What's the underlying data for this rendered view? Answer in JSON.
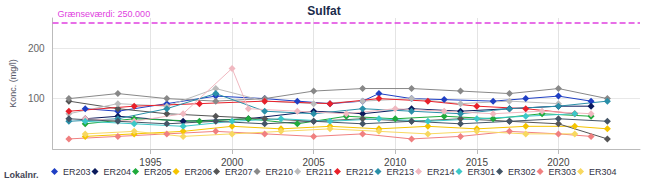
{
  "chart_data": {
    "type": "line",
    "title": "Sulfat",
    "y_label": "Konc. (mg/l)",
    "xlim": [
      1989,
      2025
    ],
    "xticks": [
      1995,
      2000,
      2005,
      2010,
      2015,
      2020
    ],
    "ylim": [
      0,
      260
    ],
    "yticks": [
      100,
      200
    ],
    "grid": true,
    "legend": "bottom",
    "legend_title": "Lokalnr.",
    "marker": "diamond",
    "annotations": [
      {
        "text": "Grænseværdi: 250.000",
        "y": 250,
        "color": "#e040e0",
        "line_style": "dashed"
      }
    ],
    "series": [
      {
        "name": "ER203",
        "color": "#1f3fc4",
        "x": [
          1991,
          1993,
          1996,
          1999,
          2002,
          2004,
          2006,
          2008,
          2009,
          2011,
          2013,
          2016,
          2018,
          2020,
          2022
        ],
        "values": [
          80,
          75,
          90,
          105,
          100,
          95,
          90,
          95,
          110,
          100,
          98,
          95,
          100,
          105,
          95
        ]
      },
      {
        "name": "ER204",
        "color": "#0a1a5c",
        "x": [
          1991,
          1993,
          1997,
          2001,
          2005,
          2008,
          2011,
          2014,
          2017,
          2020,
          2022
        ],
        "values": [
          60,
          65,
          55,
          60,
          75,
          70,
          80,
          75,
          80,
          85,
          85
        ]
      },
      {
        "name": "ER205",
        "color": "#1faa3c",
        "x": [
          1991,
          1994,
          1998,
          2001,
          2004,
          2007,
          2010,
          2013,
          2016,
          2019,
          2022
        ],
        "values": [
          50,
          60,
          55,
          60,
          50,
          65,
          60,
          65,
          60,
          70,
          65
        ]
      },
      {
        "name": "ER206",
        "color": "#f5c400",
        "x": [
          1991,
          1994,
          1997,
          2000,
          2003,
          2006,
          2009,
          2012,
          2015,
          2018,
          2021,
          2023
        ],
        "values": [
          25,
          30,
          35,
          45,
          40,
          45,
          40,
          45,
          40,
          45,
          45,
          40
        ]
      },
      {
        "name": "ER207",
        "color": "#555555",
        "x": [
          1990,
          1993,
          1996,
          1999,
          2002,
          2005,
          2008,
          2011,
          2014,
          2017,
          2020,
          2023
        ],
        "values": [
          95,
          80,
          70,
          65,
          60,
          55,
          60,
          55,
          60,
          55,
          50,
          20
        ]
      },
      {
        "name": "ER210",
        "color": "#888888",
        "x": [
          1990,
          1993,
          1996,
          1999,
          2002,
          2005,
          2008,
          2011,
          2014,
          2017,
          2020,
          2023
        ],
        "values": [
          100,
          110,
          100,
          95,
          100,
          115,
          120,
          120,
          115,
          110,
          120,
          100
        ]
      },
      {
        "name": "ER211",
        "color": "#bbbbbb",
        "x": [
          1990,
          1993,
          1996,
          1999,
          2002,
          2005,
          2008,
          2011,
          2014,
          2017,
          2020
        ],
        "values": [
          70,
          90,
          85,
          120,
          95,
          90,
          95,
          100,
          90,
          95,
          90
        ]
      },
      {
        "name": "ER212",
        "color": "#e8202a",
        "x": [
          1990,
          1994,
          1998,
          2002,
          2006,
          2009,
          2012,
          2015,
          2018,
          2021
        ],
        "values": [
          75,
          85,
          90,
          95,
          90,
          100,
          95,
          85,
          80,
          70
        ]
      },
      {
        "name": "ER213",
        "color": "#2a8fa8",
        "x": [
          1990,
          1993,
          1996,
          1999,
          2002,
          2005,
          2008,
          2011,
          2014,
          2017,
          2020,
          2023
        ],
        "values": [
          55,
          60,
          80,
          110,
          75,
          70,
          80,
          75,
          70,
          80,
          85,
          95
        ]
      },
      {
        "name": "ER214",
        "color": "#f0b8c0",
        "x": [
          1991,
          1994,
          1997,
          2000,
          2001,
          2004,
          2007,
          2010,
          2013,
          2016,
          2019,
          2022
        ],
        "values": [
          60,
          55,
          70,
          160,
          80,
          75,
          70,
          80,
          75,
          70,
          75,
          70
        ]
      },
      {
        "name": "ER301",
        "color": "#3cc8c8",
        "x": [
          1991,
          1994,
          1997,
          2000,
          2003,
          2006,
          2009,
          2012,
          2015,
          2018,
          2021
        ],
        "values": [
          55,
          50,
          45,
          55,
          60,
          55,
          60,
          55,
          60,
          65,
          70
        ]
      },
      {
        "name": "ER302",
        "color": "#445566",
        "x": [
          1990,
          1993,
          1996,
          1999,
          2002,
          2005,
          2008,
          2011,
          2014,
          2017,
          2020,
          2023
        ],
        "values": [
          60,
          55,
          50,
          55,
          50,
          55,
          50,
          55,
          50,
          55,
          60,
          55
        ]
      },
      {
        "name": "ER303",
        "color": "#f08080",
        "x": [
          1990,
          1993,
          1996,
          1999,
          2002,
          2005,
          2008,
          2011,
          2014,
          2017,
          2020,
          2022
        ],
        "values": [
          20,
          25,
          30,
          35,
          30,
          25,
          30,
          20,
          25,
          35,
          30,
          25
        ]
      },
      {
        "name": "ER304",
        "color": "#f8d860",
        "x": [
          1991,
          1994,
          1997,
          2000,
          2003,
          2006,
          2009,
          2012,
          2015,
          2018,
          2021
        ],
        "values": [
          30,
          35,
          25,
          30,
          35,
          40,
          35,
          30,
          35,
          30,
          30
        ]
      }
    ]
  }
}
